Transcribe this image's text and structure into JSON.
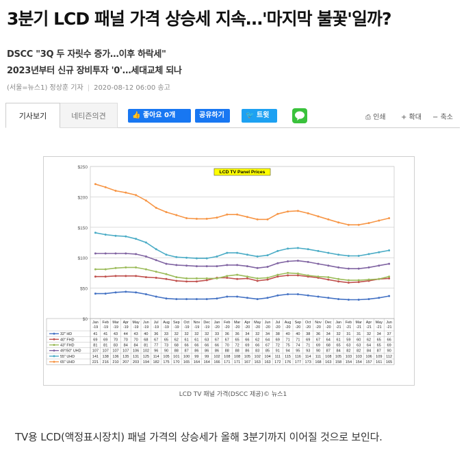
{
  "article": {
    "headline": "3분기 LCD 패널 가격 상승세 지속…'마지막 불꽃'일까?",
    "sub1": "DSCC \"3Q 두 자릿수 증가…이후 하락세\"",
    "sub2": "2023년부터 신규 장비투자 '0'…세대교체 되나",
    "byline": "(서울=뉴스1) 정상훈 기자",
    "date": "2020-08-12 06:00 송고",
    "caption": "LCD TV 패널 가격(DSCC 제공)© 뉴스1",
    "body": "TV용 LCD(액정표시장치) 패널 가격의 상승세가 올해 3분기까지 이어질 것으로 보인다."
  },
  "toolbar": {
    "tab_article": "기사보기",
    "tab_comments": "네티즌의견",
    "like_label": "좋아요 0개",
    "share_label": "공유하기",
    "tweet_label": "트윗",
    "print_label": "인쇄",
    "zoom_in_label": "확대",
    "zoom_out_label": "축소"
  },
  "colors": {
    "facebook": "#1877f2",
    "twitter": "#1da1f2",
    "line": "#3ac23c"
  },
  "chart_data": {
    "type": "line",
    "title": "LCD TV Panel Prices",
    "ylim": [
      0,
      250
    ],
    "yticks": [
      "$0",
      "$50",
      "$100",
      "$150",
      "$200",
      "$250"
    ],
    "categories": [
      [
        "Jan",
        "-19"
      ],
      [
        "Feb",
        "-19"
      ],
      [
        "Mar",
        "-19"
      ],
      [
        "Apr",
        "-19"
      ],
      [
        "May",
        "-19"
      ],
      [
        "Jun",
        "-19"
      ],
      [
        "Jul",
        "-19"
      ],
      [
        "Aug",
        "-19"
      ],
      [
        "Sep",
        "-19"
      ],
      [
        "Oct",
        "-19"
      ],
      [
        "Nov",
        "-19"
      ],
      [
        "Dec",
        "-19"
      ],
      [
        "Jan",
        "-20"
      ],
      [
        "Feb",
        "-20"
      ],
      [
        "Mar",
        "-20"
      ],
      [
        "Apr",
        "-20"
      ],
      [
        "May",
        "-20"
      ],
      [
        "Jun",
        "-20"
      ],
      [
        "Jul",
        "-20"
      ],
      [
        "Aug",
        "-20"
      ],
      [
        "Sep",
        "-20"
      ],
      [
        "Oct",
        "-20"
      ],
      [
        "Nov",
        "-20"
      ],
      [
        "Dec",
        "-20"
      ],
      [
        "Jan",
        "-21"
      ],
      [
        "Feb",
        "-21"
      ],
      [
        "Mar",
        "-21"
      ],
      [
        "Apr",
        "-21"
      ],
      [
        "May",
        "-21"
      ],
      [
        "Jun",
        "-21"
      ]
    ],
    "grid": true,
    "series": [
      {
        "name": "32\" HD",
        "color": "#4472c4",
        "values": [
          41,
          41,
          43,
          44,
          43,
          40,
          36,
          33,
          32,
          32,
          32,
          32,
          33,
          36,
          36,
          34,
          32,
          34,
          38,
          40,
          40,
          38,
          36,
          34,
          32,
          31,
          31,
          32,
          34,
          37
        ]
      },
      {
        "name": "40\" FHD",
        "color": "#c0504d",
        "values": [
          69,
          69,
          70,
          70,
          70,
          68,
          67,
          65,
          62,
          61,
          61,
          63,
          67,
          67,
          65,
          66,
          62,
          64,
          69,
          71,
          71,
          69,
          67,
          64,
          61,
          59,
          60,
          62,
          65,
          66
        ]
      },
      {
        "name": "43\" FHD",
        "color": "#9bbb59",
        "values": [
          81,
          81,
          83,
          84,
          84,
          81,
          77,
          73,
          68,
          66,
          66,
          66,
          66,
          70,
          72,
          69,
          66,
          67,
          72,
          75,
          74,
          71,
          69,
          68,
          65,
          63,
          63,
          64,
          65,
          69
        ]
      },
      {
        "name": "49\"/50\" UHD",
        "color": "#8064a2",
        "values": [
          107,
          107,
          107,
          107,
          106,
          102,
          96,
          90,
          88,
          87,
          86,
          86,
          86,
          88,
          88,
          86,
          83,
          85,
          91,
          94,
          95,
          93,
          90,
          87,
          84,
          82,
          82,
          84,
          87,
          90
        ]
      },
      {
        "name": "55\" UHD",
        "color": "#4bacc6",
        "values": [
          141,
          138,
          136,
          135,
          131,
          125,
          114,
          105,
          101,
          100,
          99,
          99,
          102,
          108,
          108,
          105,
          102,
          104,
          111,
          115,
          116,
          114,
          111,
          108,
          105,
          103,
          103,
          106,
          109,
          112
        ]
      },
      {
        "name": "65\" UHD",
        "color": "#f79646",
        "values": [
          221,
          216,
          210,
          207,
          203,
          194,
          182,
          175,
          170,
          165,
          164,
          164,
          166,
          171,
          171,
          167,
          163,
          163,
          172,
          176,
          177,
          173,
          168,
          163,
          158,
          154,
          154,
          157,
          161,
          165
        ]
      }
    ]
  }
}
